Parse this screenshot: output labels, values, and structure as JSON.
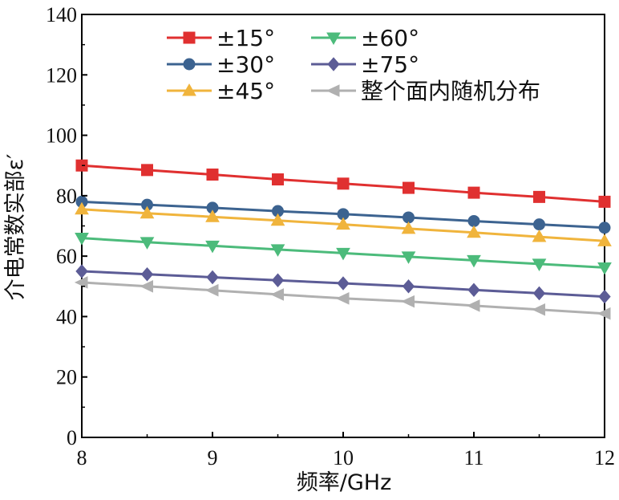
{
  "chart_data": {
    "type": "line",
    "xlabel": "频率/GHz",
    "ylabel": "介电常数实部ε′",
    "xlim": [
      8,
      12
    ],
    "ylim": [
      0,
      140
    ],
    "xticks": [
      "8",
      "9",
      "10",
      "11",
      "12"
    ],
    "yticks": [
      "0",
      "20",
      "40",
      "60",
      "80",
      "100",
      "120",
      "140"
    ],
    "x": [
      8,
      8.5,
      9,
      9.5,
      10,
      10.5,
      11,
      11.5,
      12
    ],
    "grid": false,
    "legend_position": "top",
    "series": [
      {
        "name": "±15°",
        "color": "#e03030",
        "marker": "square",
        "values": [
          90.0,
          88.5,
          87.0,
          85.4,
          84.0,
          82.6,
          81.0,
          79.6,
          78.0
        ]
      },
      {
        "name": "±30°",
        "color": "#3c6390",
        "marker": "circle",
        "values": [
          78.0,
          77.0,
          76.0,
          74.9,
          73.9,
          72.8,
          71.6,
          70.5,
          69.4
        ]
      },
      {
        "name": "±45°",
        "color": "#f0b43c",
        "marker": "triangle-up",
        "values": [
          75.5,
          74.2,
          73.0,
          71.8,
          70.5,
          69.1,
          67.8,
          66.4,
          65.0
        ]
      },
      {
        "name": "±60°",
        "color": "#4cbb7b",
        "marker": "triangle-down",
        "values": [
          66.0,
          64.6,
          63.4,
          62.2,
          61.0,
          59.8,
          58.6,
          57.4,
          56.2
        ]
      },
      {
        "name": "±75°",
        "color": "#5c5c96",
        "marker": "diamond",
        "values": [
          55.0,
          54.0,
          53.0,
          52.0,
          51.0,
          50.0,
          48.8,
          47.7,
          46.6
        ]
      },
      {
        "name": "整个面内随机分布",
        "color": "#b0b0b0",
        "marker": "triangle-left",
        "values": [
          51.3,
          50.0,
          48.7,
          47.3,
          46.0,
          45.0,
          43.6,
          42.3,
          41.0
        ]
      }
    ]
  }
}
